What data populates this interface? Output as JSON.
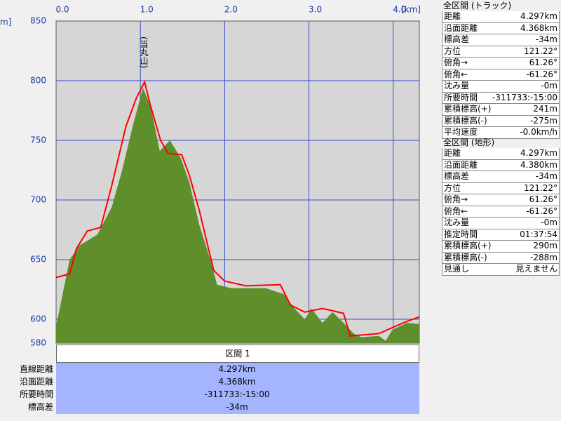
{
  "chart_data": {
    "type": "area",
    "x_unit": "[km]",
    "y_unit": "m]",
    "annotation": "(当丸山)",
    "xlim": [
      0,
      4.31
    ],
    "ylim": [
      580,
      850
    ],
    "xticks": [
      {
        "value": 0,
        "label": "0.0"
      },
      {
        "value": 1,
        "label": "1.0"
      },
      {
        "value": 2,
        "label": "2.0"
      },
      {
        "value": 3,
        "label": "3.0"
      },
      {
        "value": 4,
        "label": "4.0"
      }
    ],
    "yticks": [
      580,
      600,
      650,
      700,
      750,
      800,
      850
    ],
    "grid": true,
    "series": [
      {
        "type": "area",
        "color": "#5e8f2a",
        "x": [
          0,
          0.06,
          0.16,
          0.28,
          0.49,
          0.66,
          0.78,
          0.91,
          1.03,
          1.12,
          1.23,
          1.35,
          1.48,
          1.58,
          1.7,
          1.83,
          1.91,
          2.08,
          2.49,
          2.7,
          2.83,
          2.95,
          3.03,
          3.16,
          3.28,
          3.41,
          3.53,
          3.62,
          3.83,
          3.91,
          3.99,
          4.16,
          4.31
        ],
        "values": [
          594,
          615,
          650,
          662,
          671,
          694,
          724,
          762,
          794,
          779,
          741,
          750,
          735,
          715,
          679,
          650,
          629,
          626,
          626,
          621,
          609,
          600,
          609,
          597,
          606,
          597,
          588,
          585,
          586,
          582,
          591,
          597,
          596
        ]
      },
      {
        "type": "line",
        "color": "#ff0000",
        "x": [
          0,
          0.16,
          0.24,
          0.37,
          0.53,
          0.66,
          0.83,
          0.95,
          1.05,
          1.12,
          1.24,
          1.33,
          1.49,
          1.58,
          1.7,
          1.87,
          2.0,
          2.25,
          2.66,
          2.78,
          2.95,
          3.16,
          3.41,
          3.49,
          3.83,
          4.12,
          4.31
        ],
        "values": [
          635,
          638,
          659,
          674,
          677,
          712,
          762,
          785,
          799,
          779,
          750,
          739,
          738,
          721,
          691,
          641,
          632,
          628,
          629,
          612,
          606,
          609,
          605,
          586,
          588,
          597,
          602
        ]
      }
    ]
  },
  "segment_table": {
    "header": "区間 1",
    "rows": [
      [
        "直線距離",
        "4.297km"
      ],
      [
        "沿面距離",
        "4.368km"
      ],
      [
        "所要時間",
        "-311733:-15:00"
      ],
      [
        "標高差",
        "-34m"
      ]
    ]
  },
  "panels": [
    {
      "title": "全区間 (トラック)",
      "rows": [
        [
          "距離",
          "4.297km"
        ],
        [
          "沿面距離",
          "4.368km"
        ],
        [
          "標高差",
          "-34m"
        ],
        [
          "方位",
          "121.22°"
        ],
        [
          "俯角→",
          "61.26°"
        ],
        [
          "俯角←",
          "-61.26°"
        ],
        [
          "沈み量",
          "-0m"
        ],
        [
          "所要時間",
          "-311733:-15:00"
        ],
        [
          "累積標高(+)",
          "241m"
        ],
        [
          "累積標高(-)",
          "-275m"
        ],
        [
          "平均速度",
          "-0.0km/h"
        ]
      ]
    },
    {
      "title": "全区間 (地形)",
      "rows": [
        [
          "距離",
          "4.297km"
        ],
        [
          "沿面距離",
          "4.380km"
        ],
        [
          "標高差",
          "-34m"
        ],
        [
          "方位",
          "121.22°"
        ],
        [
          "俯角→",
          "61.26°"
        ],
        [
          "俯角←",
          "-61.26°"
        ],
        [
          "沈み量",
          "-0m"
        ],
        [
          "推定時間",
          "01:37:54"
        ],
        [
          "累積標高(+)",
          "290m"
        ],
        [
          "累積標高(-)",
          "-288m"
        ],
        [
          "見通し",
          "見えません"
        ]
      ]
    }
  ]
}
